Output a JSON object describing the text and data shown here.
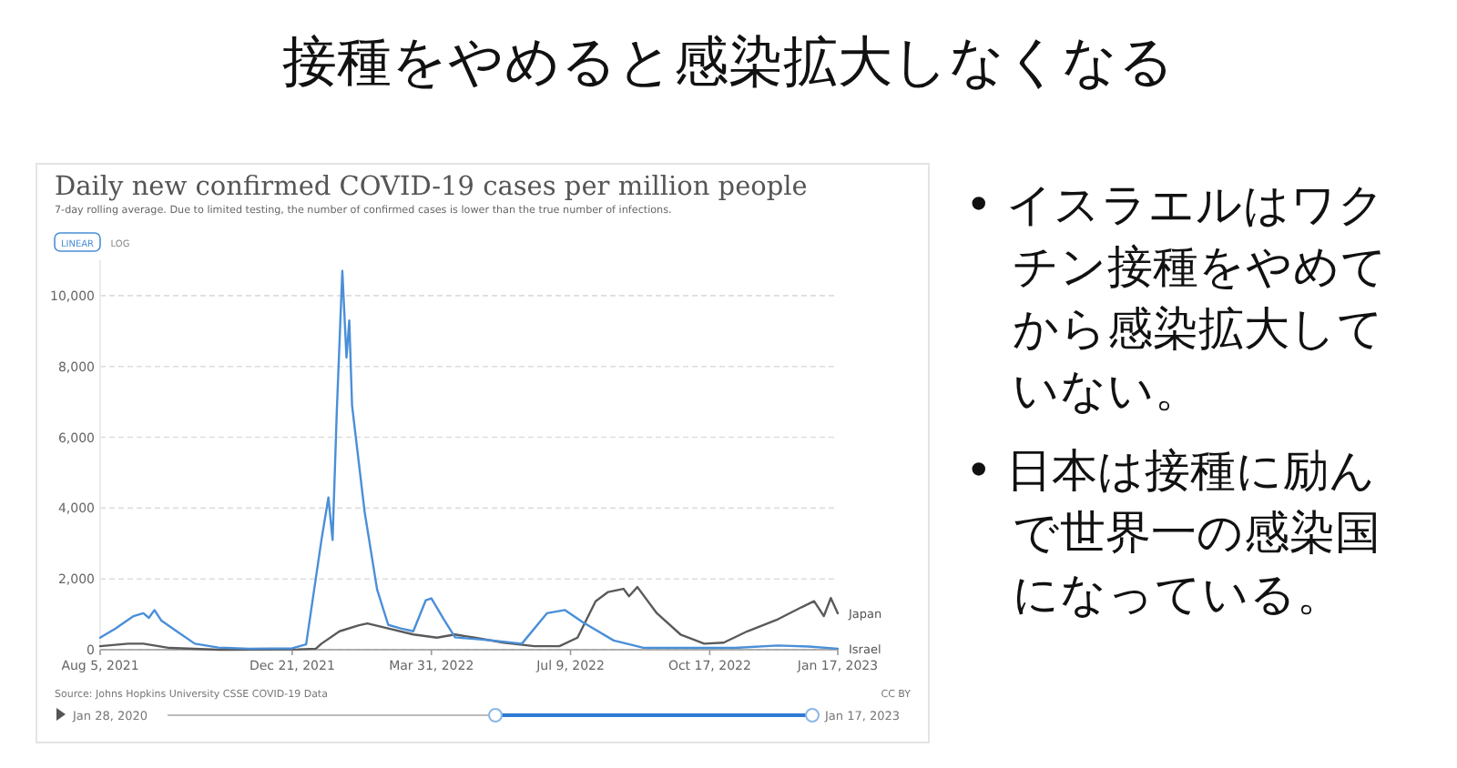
{
  "chart_data": {
    "type": "line",
    "title": "Daily new confirmed COVID-19 cases per million people",
    "subtitle": "7-day rolling average. Due to limited testing, the number of confirmed cases is lower than the true number of infections.",
    "annotations": [
      "接種をやめると感染拡大しなくなる",
      "• イスラエルはワクチン接種をやめてから感染拡大していない。",
      "• 日本は接種に励んで世界一の感染国になっている。",
      "LINEAR",
      "LOG",
      "Source: Johns Hopkins University CSSE COVID-19 Data",
      "CC BY",
      "Jan 28, 2020",
      "Jan 17, 2023"
    ],
    "xlim": [
      "2021-08-05",
      "2023-01-17"
    ],
    "xticks": [
      {
        "value": "2021-08-05",
        "label": "Aug 5, 2021"
      },
      {
        "value": "2021-12-21",
        "label": "Dec 21, 2021"
      },
      {
        "value": "2022-03-31",
        "label": "Mar 31, 2022"
      },
      {
        "value": "2022-07-09",
        "label": "Jul 9, 2022"
      },
      {
        "value": "2022-10-17",
        "label": "Oct 17, 2022"
      },
      {
        "value": "2023-01-17",
        "label": "Jan 17, 2023"
      }
    ],
    "ylim": [
      0,
      11000
    ],
    "yticks": [
      0,
      {
        "value": 2000,
        "label": "2,000"
      },
      {
        "value": 4000,
        "label": "4,000"
      },
      {
        "value": 6000,
        "label": "6,000"
      },
      {
        "value": 8000,
        "label": "8,000"
      },
      {
        "value": 10000,
        "label": "10,000"
      }
    ],
    "grid": "y",
    "series": [
      {
        "name": "Japan",
        "color": "#5a5a5a",
        "x": [
          "2021-08-05",
          "2021-08-25",
          "2021-09-05",
          "2021-09-24",
          "2021-10-29",
          "2021-12-25",
          "2022-01-07",
          "2022-01-11",
          "2022-01-24",
          "2022-02-07",
          "2022-02-13",
          "2022-02-28",
          "2022-03-18",
          "2022-04-04",
          "2022-04-17",
          "2022-05-01",
          "2022-05-22",
          "2022-06-13",
          "2022-07-01",
          "2022-07-14",
          "2022-07-27",
          "2022-08-05",
          "2022-08-16",
          "2022-08-20",
          "2022-08-26",
          "2022-09-09",
          "2022-09-26",
          "2022-10-13",
          "2022-10-27",
          "2022-11-13",
          "2022-12-05",
          "2022-12-22",
          "2022-12-31",
          "2023-01-07",
          "2023-01-12",
          "2023-01-17"
        ],
        "values": [
          100,
          170,
          170,
          50,
          0,
          10,
          30,
          170,
          520,
          690,
          740,
          600,
          430,
          340,
          430,
          340,
          200,
          100,
          100,
          340,
          1370,
          1630,
          1720,
          1510,
          1770,
          1030,
          430,
          170,
          200,
          520,
          860,
          1200,
          1370,
          950,
          1460,
          1030
        ]
      },
      {
        "name": "Israel",
        "color": "#4a8fd8",
        "x": [
          "2021-08-05",
          "2021-08-16",
          "2021-08-29",
          "2021-09-05",
          "2021-09-09",
          "2021-09-13",
          "2021-09-18",
          "2021-09-29",
          "2021-10-12",
          "2021-10-29",
          "2021-11-20",
          "2021-12-21",
          "2021-12-31",
          "2022-01-11",
          "2022-01-16",
          "2022-01-19",
          "2022-01-22",
          "2022-01-26",
          "2022-01-29",
          "2022-01-31",
          "2022-02-02",
          "2022-02-11",
          "2022-02-20",
          "2022-02-28",
          "2022-03-09",
          "2022-03-18",
          "2022-03-27",
          "2022-03-31",
          "2022-04-09",
          "2022-04-17",
          "2022-05-14",
          "2022-06-04",
          "2022-06-22",
          "2022-07-05",
          "2022-07-18",
          "2022-08-09",
          "2022-08-31",
          "2022-10-09",
          "2022-11-04",
          "2022-12-05",
          "2022-12-27",
          "2023-01-17"
        ],
        "values": [
          340,
          600,
          950,
          1030,
          900,
          1120,
          820,
          520,
          170,
          60,
          30,
          40,
          150,
          3100,
          4300,
          3100,
          6700,
          10700,
          8250,
          9300,
          6900,
          3900,
          1700,
          700,
          600,
          520,
          1400,
          1450,
          850,
          350,
          260,
          170,
          1030,
          1120,
          770,
          260,
          50,
          50,
          50,
          120,
          90,
          30
        ]
      }
    ]
  }
}
